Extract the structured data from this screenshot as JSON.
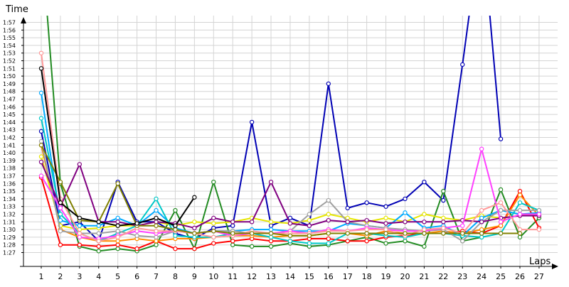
{
  "chart_data": {
    "type": "line",
    "ylabel": "Time",
    "xlabel": "Laps",
    "y_unit": "m:ss",
    "ylim": [
      "1:26",
      "1:59"
    ],
    "xlim": [
      1,
      27
    ],
    "grid": true,
    "legend": "none",
    "x": [
      1,
      2,
      3,
      4,
      5,
      6,
      7,
      8,
      9,
      10,
      11,
      12,
      13,
      14,
      15,
      16,
      17,
      18,
      19,
      20,
      21,
      22,
      23,
      24,
      25,
      26,
      27
    ],
    "x_tick_labels": [
      "1",
      "2",
      "3",
      "4",
      "5",
      "6",
      "7",
      "8",
      "9",
      "10",
      "11",
      "12",
      "13",
      "14",
      "15",
      "16",
      "17",
      "18",
      "19",
      "20",
      "21",
      "22",
      "23",
      "24",
      "25",
      "26",
      "27"
    ],
    "y_tick_labels": [
      "1:27",
      "1:28",
      "1:29",
      "1:30",
      "1:31",
      "1:32",
      "1:33",
      "1:34",
      "1:35",
      "1:36",
      "1:37",
      "1:38",
      "1:39",
      "1:40",
      "1:41",
      "1:42",
      "1:43",
      "1:44",
      "1:45",
      "1:46",
      "1:47",
      "1:48",
      "1:49",
      "1:50",
      "1:51",
      "1:52",
      "1:53",
      "1:54",
      "1:55",
      "1:56",
      "1:57"
    ],
    "series": [
      {
        "color": "#0000b4",
        "values": [
          102.8,
          90.5,
          91.0,
          88.5,
          96.2,
          91.0,
          91.0,
          89.5,
          88.8,
          90.2,
          90.5,
          104.0,
          90.5,
          91.5,
          90.5,
          109.0,
          92.8,
          93.5,
          93.0,
          94.0,
          96.2,
          93.8,
          111.5,
          130.0,
          101.8,
          null,
          null
        ]
      },
      {
        "color": "#228b22",
        "values": [
          128.0,
          96.0,
          87.8,
          87.2,
          87.5,
          87.2,
          88.0,
          92.5,
          87.5,
          96.2,
          88.0,
          87.8,
          87.8,
          88.2,
          87.8,
          88.0,
          88.5,
          89.0,
          88.2,
          88.5,
          87.8,
          95.0,
          88.5,
          89.0,
          95.2,
          89.0,
          91.5
        ]
      },
      {
        "color": "#ff0000",
        "values": [
          96.8,
          88.0,
          88.0,
          87.8,
          88.0,
          87.5,
          88.5,
          87.5,
          87.5,
          88.2,
          88.5,
          88.8,
          88.5,
          88.5,
          88.8,
          88.8,
          88.5,
          88.5,
          89.0,
          89.2,
          89.5,
          89.5,
          89.8,
          89.5,
          90.5,
          95.0,
          90.2
        ]
      },
      {
        "color": "#ff8c00",
        "values": [
          101.0,
          90.0,
          89.0,
          88.5,
          88.5,
          88.8,
          88.5,
          88.8,
          88.8,
          89.0,
          89.2,
          89.2,
          89.0,
          89.2,
          89.2,
          89.5,
          89.5,
          89.2,
          89.8,
          89.5,
          89.5,
          89.8,
          89.5,
          90.0,
          90.5,
          94.5,
          91.8
        ]
      },
      {
        "color": "#e6e600",
        "values": [
          99.5,
          90.5,
          90.0,
          90.2,
          90.5,
          90.5,
          91.0,
          90.5,
          91.0,
          90.8,
          91.0,
          91.5,
          91.0,
          90.8,
          91.2,
          92.0,
          91.5,
          91.0,
          91.5,
          91.0,
          92.0,
          91.5,
          91.2,
          91.8,
          91.5,
          91.8,
          92.0
        ]
      },
      {
        "color": "#00aaff",
        "values": [
          107.8,
          91.2,
          90.5,
          90.5,
          91.5,
          90.5,
          92.5,
          90.2,
          89.5,
          89.8,
          89.8,
          90.0,
          90.0,
          89.8,
          89.8,
          89.8,
          90.8,
          90.5,
          90.2,
          92.2,
          90.2,
          90.5,
          89.2,
          91.5,
          92.5,
          92.0,
          92.2
        ]
      },
      {
        "color": "#00c8c8",
        "values": [
          104.5,
          92.0,
          89.5,
          88.5,
          89.5,
          90.5,
          94.0,
          89.2,
          89.0,
          89.0,
          89.5,
          89.5,
          89.0,
          88.5,
          88.2,
          88.2,
          89.5,
          89.5,
          89.2,
          89.0,
          89.5,
          89.5,
          89.2,
          89.0,
          89.5,
          93.5,
          92.5
        ]
      },
      {
        "color": "#a0a0a0",
        "values": [
          101.5,
          89.8,
          89.5,
          89.5,
          89.8,
          89.2,
          89.0,
          89.8,
          89.5,
          89.8,
          89.8,
          89.5,
          89.5,
          89.8,
          92.0,
          93.8,
          91.0,
          90.5,
          90.2,
          90.0,
          89.8,
          90.0,
          88.5,
          91.0,
          92.5,
          92.5,
          92.5
        ]
      },
      {
        "color": "#800080",
        "values": [
          98.8,
          93.0,
          98.5,
          91.0,
          91.0,
          90.5,
          91.0,
          90.8,
          90.2,
          91.5,
          91.0,
          91.0,
          96.2,
          90.8,
          90.5,
          91.2,
          91.0,
          91.2,
          90.8,
          91.0,
          91.0,
          91.0,
          91.2,
          91.0,
          91.5,
          91.8,
          91.8
        ]
      },
      {
        "color": "#ff40ff",
        "values": [
          97.0,
          92.8,
          89.0,
          88.8,
          89.2,
          89.8,
          89.5,
          89.8,
          89.5,
          89.8,
          89.2,
          89.5,
          89.5,
          89.8,
          89.5,
          90.0,
          89.8,
          90.2,
          90.0,
          89.8,
          89.8,
          90.2,
          90.5,
          100.5,
          91.0,
          92.0,
          92.0
        ]
      },
      {
        "color": "#ff9999",
        "values": [
          113.0,
          94.0,
          89.5,
          88.5,
          89.0,
          90.2,
          89.8,
          89.8,
          89.5,
          89.0,
          89.2,
          89.8,
          89.5,
          89.5,
          89.5,
          89.8,
          89.8,
          90.0,
          90.0,
          89.2,
          90.0,
          90.2,
          89.5,
          92.5,
          93.5,
          90.0,
          90.0
        ]
      },
      {
        "color": "#808000",
        "values": [
          101.0,
          96.2,
          91.2,
          91.0,
          96.0,
          90.5,
          90.5,
          90.0,
          89.5,
          89.8,
          89.5,
          89.5,
          89.5,
          89.2,
          89.2,
          89.5,
          89.5,
          89.5,
          89.5,
          89.5,
          89.5,
          89.5,
          89.5,
          89.5,
          89.5,
          89.5,
          null
        ]
      },
      {
        "color": "#000000",
        "values": [
          111.0,
          93.5,
          91.5,
          91.0,
          90.5,
          90.8,
          91.5,
          90.5,
          94.2,
          null,
          null,
          null,
          null,
          null,
          null,
          null,
          null,
          null,
          null,
          null,
          null,
          null,
          null,
          null,
          null,
          null,
          null
        ]
      }
    ]
  }
}
